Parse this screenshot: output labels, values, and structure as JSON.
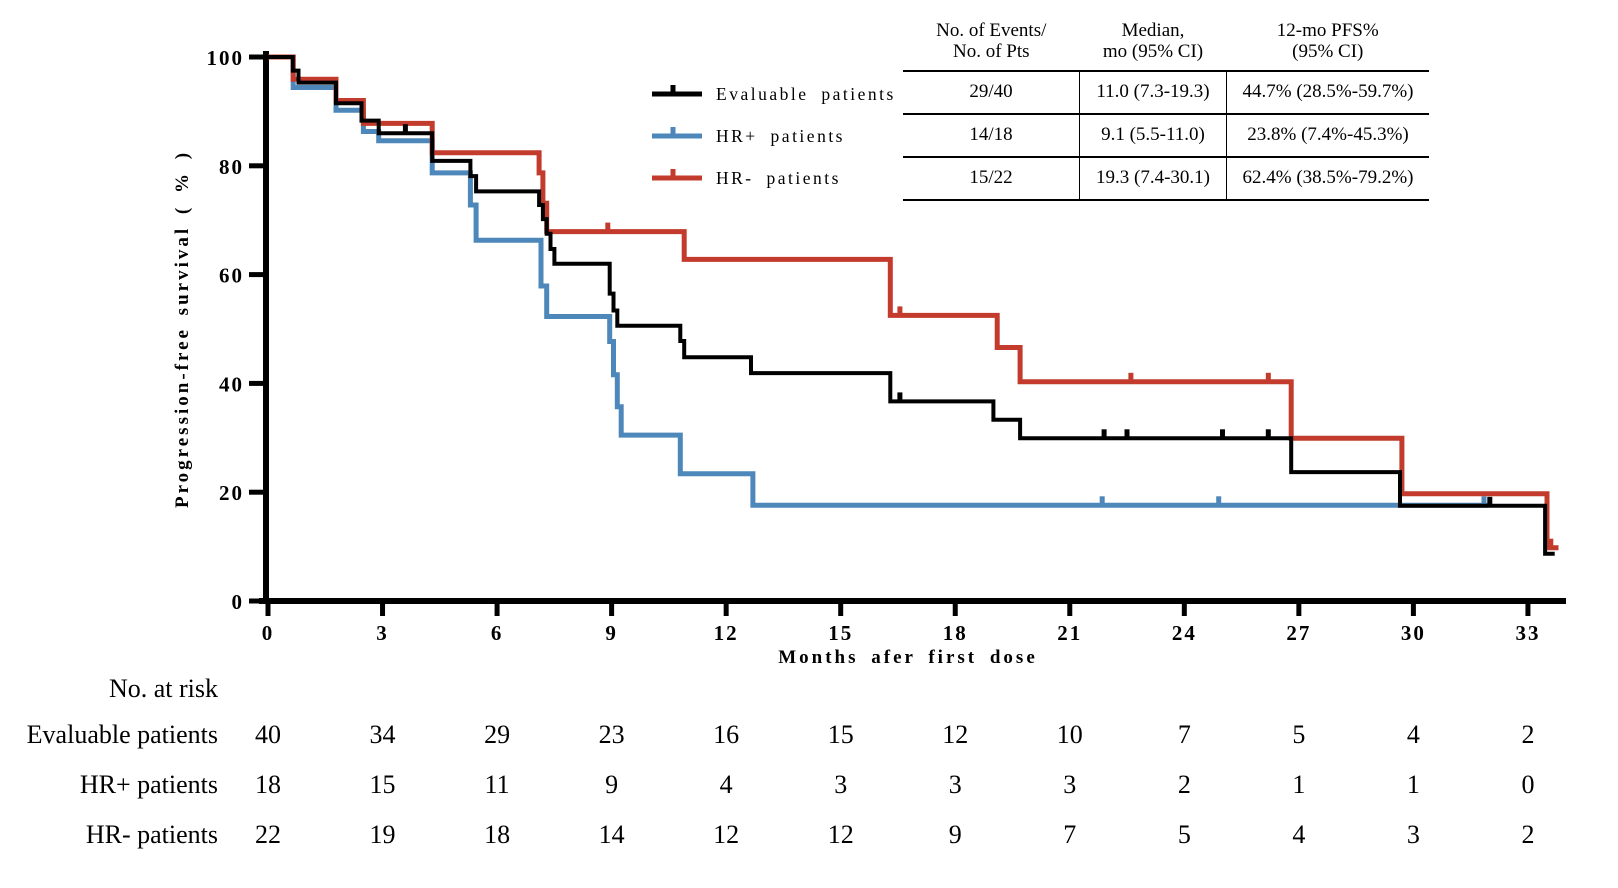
{
  "colors": {
    "evaluable": "#000000",
    "hr_positive": "#4e87b9",
    "hr_negative": "#c23b2c",
    "axis": "#000000"
  },
  "chart_data": {
    "type": "line",
    "variant": "kaplan-meier-step",
    "title": "",
    "xlabel": "Months afer first dose",
    "ylabel": "Progression-free survival ( % )",
    "xlim": [
      0,
      34.5
    ],
    "ylim": [
      0,
      100
    ],
    "xticks": [
      0,
      3,
      6,
      9,
      12,
      15,
      18,
      21,
      24,
      27,
      30,
      33
    ],
    "yticks": [
      0,
      20,
      40,
      60,
      80,
      100
    ],
    "grid": false,
    "legend_position": "upper-center-left",
    "series": [
      {
        "name": "HR+ patients",
        "color": "#4e87b9",
        "steps": [
          [
            0.66,
            94.4
          ],
          [
            1.78,
            90.2
          ],
          [
            2.5,
            86.3
          ],
          [
            2.9,
            84.6
          ],
          [
            4.3,
            78.7
          ],
          [
            5.3,
            72.8
          ],
          [
            5.45,
            66.3
          ],
          [
            7.15,
            57.9
          ],
          [
            7.3,
            52.3
          ],
          [
            8.95,
            47.7
          ],
          [
            9.05,
            41.6
          ],
          [
            9.15,
            35.7
          ],
          [
            9.25,
            30.5
          ],
          [
            10.8,
            23.4
          ],
          [
            12.7,
            17.6
          ]
        ],
        "end_month": 31.95,
        "censor_marks": [
          [
            21.85,
            17.6
          ],
          [
            24.9,
            17.6
          ],
          [
            31.85,
            17.6
          ]
        ]
      },
      {
        "name": "HR- patients",
        "color": "#c23b2c",
        "steps": [
          [
            0.66,
            95.9
          ],
          [
            1.78,
            92.0
          ],
          [
            2.5,
            87.8
          ],
          [
            4.3,
            82.4
          ],
          [
            7.1,
            78.7
          ],
          [
            7.2,
            73.1
          ],
          [
            7.3,
            67.9
          ],
          [
            10.9,
            62.8
          ],
          [
            16.3,
            52.5
          ],
          [
            19.1,
            46.6
          ],
          [
            19.7,
            40.3
          ],
          [
            26.8,
            29.9
          ],
          [
            29.7,
            19.7
          ],
          [
            33.5,
            9.8
          ]
        ],
        "end_month": 33.8,
        "censor_marks": [
          [
            8.9,
            67.9
          ],
          [
            16.55,
            52.5
          ],
          [
            22.6,
            40.3
          ],
          [
            26.2,
            40.3
          ],
          [
            33.6,
            9.8
          ]
        ]
      },
      {
        "name": "Evaluable patients",
        "color": "#000000",
        "steps": [
          [
            0.65,
            97.5
          ],
          [
            0.8,
            95.3
          ],
          [
            1.78,
            91.5
          ],
          [
            2.45,
            88.3
          ],
          [
            2.9,
            86.0
          ],
          [
            4.3,
            80.9
          ],
          [
            5.3,
            78.1
          ],
          [
            5.45,
            75.3
          ],
          [
            7.1,
            72.8
          ],
          [
            7.2,
            70.2
          ],
          [
            7.3,
            67.5
          ],
          [
            7.4,
            64.7
          ],
          [
            7.5,
            62.0
          ],
          [
            8.95,
            56.5
          ],
          [
            9.05,
            53.4
          ],
          [
            9.15,
            50.6
          ],
          [
            10.8,
            47.8
          ],
          [
            10.9,
            44.8
          ],
          [
            12.65,
            41.9
          ],
          [
            16.3,
            36.7
          ],
          [
            19.0,
            33.3
          ],
          [
            19.7,
            29.9
          ],
          [
            26.8,
            23.7
          ],
          [
            29.65,
            17.5
          ],
          [
            33.45,
            8.7
          ]
        ],
        "end_month": 33.7,
        "censor_marks": [
          [
            3.6,
            86.0
          ],
          [
            16.55,
            36.7
          ],
          [
            21.9,
            29.9
          ],
          [
            22.5,
            29.9
          ],
          [
            25.0,
            29.9
          ],
          [
            26.2,
            29.9
          ],
          [
            32.0,
            17.5
          ]
        ]
      }
    ]
  },
  "legend": [
    {
      "label": "Evaluable patients",
      "color": "#000000"
    },
    {
      "label": "HR+ patients",
      "color": "#4e87b9"
    },
    {
      "label": "HR- patients",
      "color": "#c23b2c"
    }
  ],
  "stats_table": {
    "headers": [
      "No. of Events/\nNo. of Pts",
      "Median,\nmo (95% CI)",
      "12-mo PFS%\n(95% CI)"
    ],
    "rows": [
      [
        "29/40",
        "11.0 (7.3-19.3)",
        "44.7% (28.5%-59.7%)"
      ],
      [
        "14/18",
        "9.1 (5.5-11.0)",
        "23.8% (7.4%-45.3%)"
      ],
      [
        "15/22",
        "19.3 (7.4-30.1)",
        "62.4% (38.5%-79.2%)"
      ]
    ]
  },
  "risk_table": {
    "title": "No. at risk",
    "timepoints": [
      0,
      3,
      6,
      9,
      12,
      15,
      18,
      21,
      24,
      27,
      30,
      33
    ],
    "rows": [
      {
        "label": "Evaluable patients",
        "values": [
          40,
          34,
          29,
          23,
          16,
          15,
          12,
          10,
          7,
          5,
          4,
          2
        ]
      },
      {
        "label": "HR+ patients",
        "values": [
          18,
          15,
          11,
          9,
          4,
          3,
          3,
          3,
          2,
          1,
          1,
          0
        ]
      },
      {
        "label": "HR- patients",
        "values": [
          22,
          19,
          18,
          14,
          12,
          12,
          9,
          7,
          5,
          4,
          3,
          2
        ]
      }
    ]
  }
}
